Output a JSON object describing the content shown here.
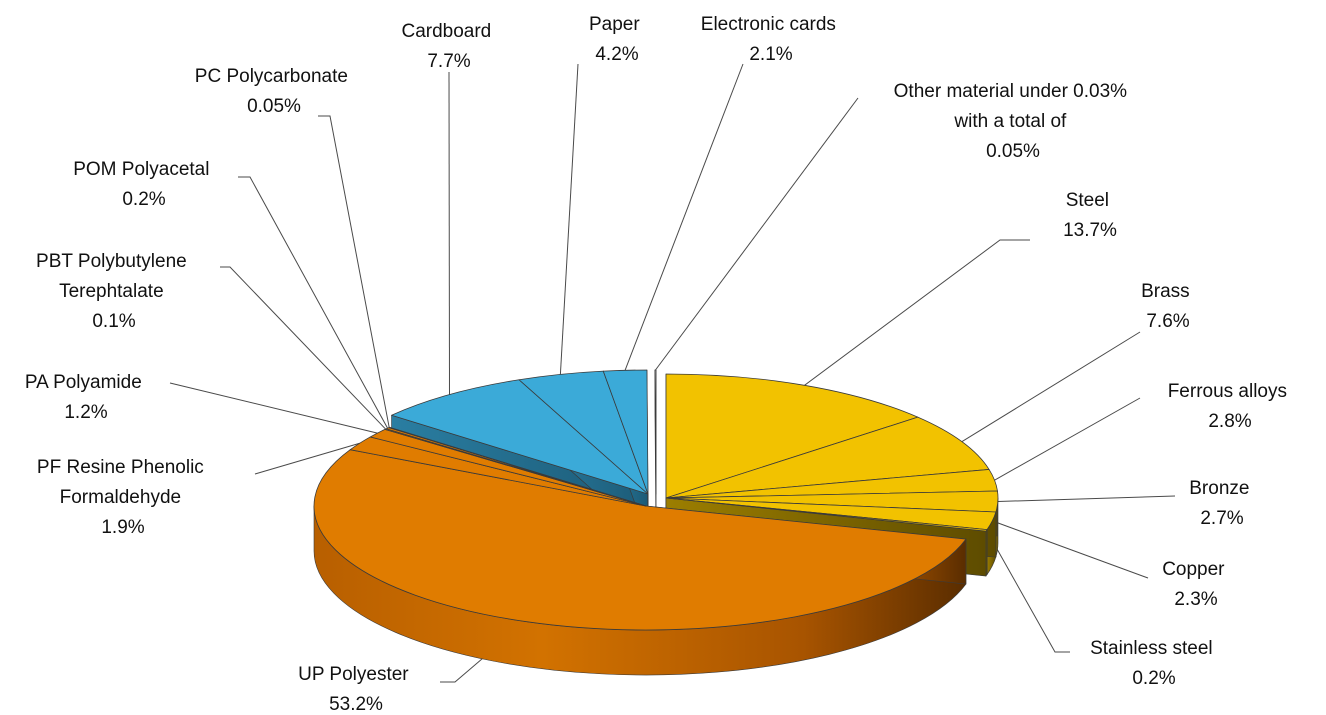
{
  "chart_data": {
    "type": "pie",
    "three_d": true,
    "exploded": true,
    "legend": "none",
    "slices": [
      {
        "id": "steel",
        "label": "Steel",
        "value": 13.7,
        "value_label": "13.7%",
        "color": "#F2C200"
      },
      {
        "id": "brass",
        "label": "Brass",
        "value": 7.6,
        "value_label": "7.6%",
        "color": "#F2C200"
      },
      {
        "id": "ferrous-alloys",
        "label": "Ferrous alloys",
        "value": 2.8,
        "value_label": "2.8%",
        "color": "#F2C200"
      },
      {
        "id": "bronze",
        "label": "Bronze",
        "value": 2.7,
        "value_label": "2.7%",
        "color": "#F2C200"
      },
      {
        "id": "copper",
        "label": "Copper",
        "value": 2.3,
        "value_label": "2.3%",
        "color": "#F2C200"
      },
      {
        "id": "stainless-steel",
        "label": "Stainless steel",
        "value": 0.2,
        "value_label": "0.2%",
        "color": "#F2C200"
      },
      {
        "id": "up-polyester",
        "label": "UP Polyester",
        "value": 53.2,
        "value_label": "53.2%",
        "color": "#E07C00"
      },
      {
        "id": "pf-resine",
        "label": "PF Resine Phenolic Formaldehyde",
        "value": 1.9,
        "value_label": "1.9%",
        "color": "#E07C00"
      },
      {
        "id": "pa-polyamide",
        "label": "PA Polyamide",
        "value": 1.2,
        "value_label": "1.2%",
        "color": "#E07C00"
      },
      {
        "id": "pbt",
        "label": "PBT Polybutylene Terephtalate",
        "value": 0.1,
        "value_label": "0.1%",
        "color": "#E07C00"
      },
      {
        "id": "pom",
        "label": "POM Polyacetal",
        "value": 0.2,
        "value_label": "0.2%",
        "color": "#E07C00"
      },
      {
        "id": "pc",
        "label": "PC Polycarbonate",
        "value": 0.05,
        "value_label": "0.05%",
        "color": "#E07C00"
      },
      {
        "id": "cardboard",
        "label": "Cardboard",
        "value": 7.7,
        "value_label": "7.7%",
        "color": "#3BAAD8"
      },
      {
        "id": "paper",
        "label": "Paper",
        "value": 4.2,
        "value_label": "4.2%",
        "color": "#3BAAD8"
      },
      {
        "id": "electronic-cards",
        "label": "Electronic cards",
        "value": 2.1,
        "value_label": "2.1%",
        "color": "#3BAAD8"
      },
      {
        "id": "other",
        "label": "Other material under 0.03% with a total of",
        "value": 0.05,
        "value_label": "0.05%",
        "color": "#FFFFFF"
      }
    ]
  }
}
